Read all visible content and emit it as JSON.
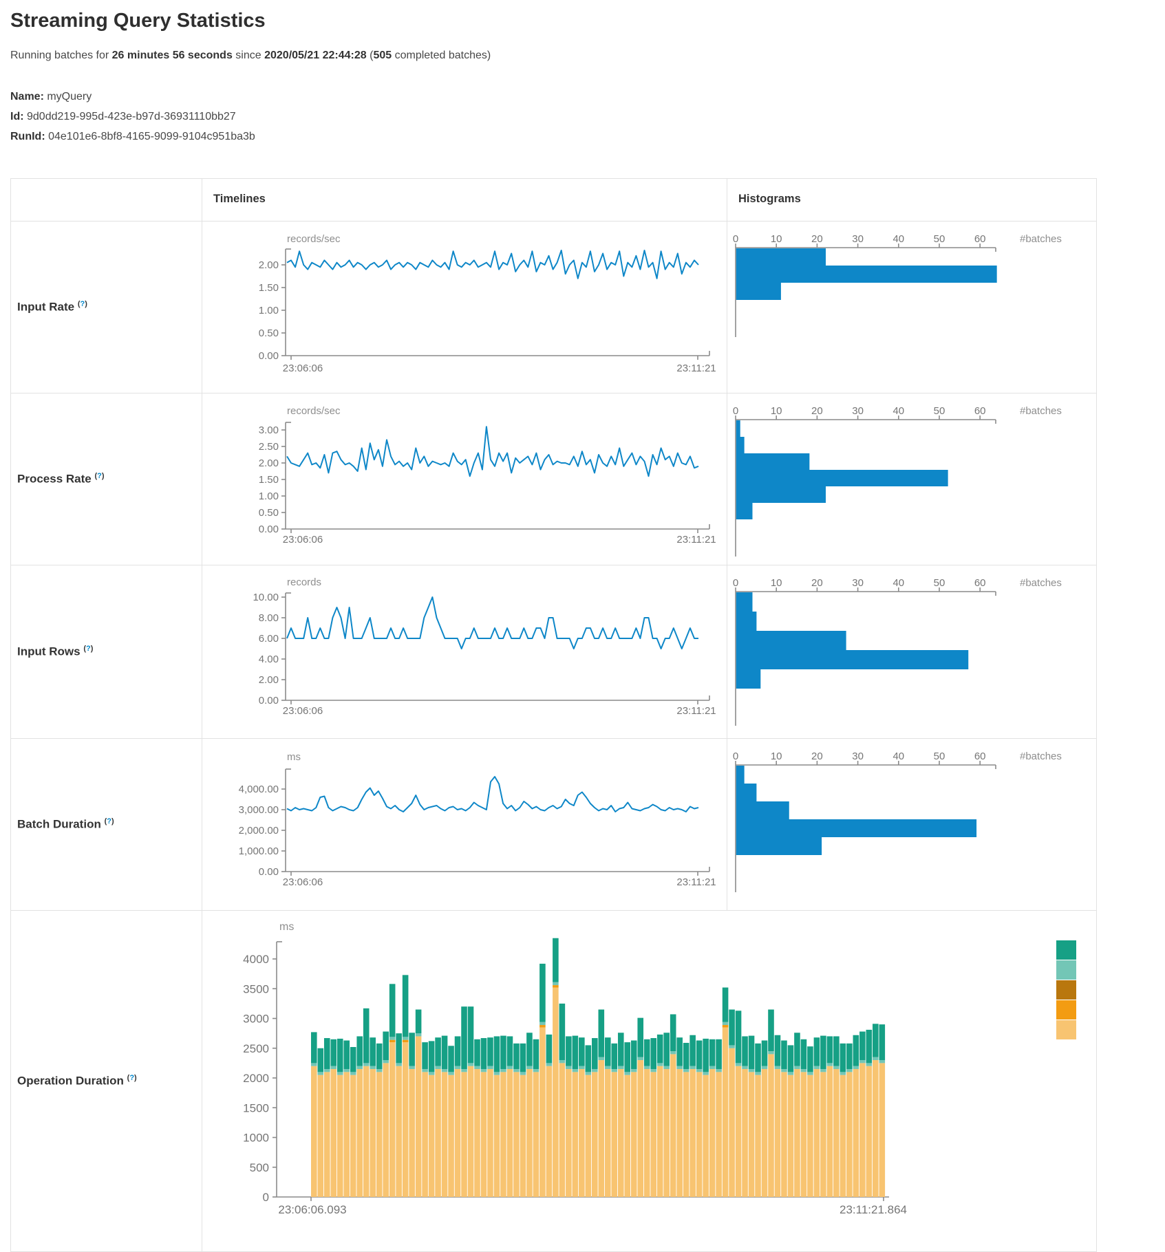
{
  "page": {
    "title": "Streaming Query Statistics",
    "subtitle_prefix": "Running batches for ",
    "duration": "26 minutes 56 seconds",
    "since_text": " since ",
    "start_time": "2020/05/21 22:44:28",
    "paren_open": " (",
    "completed_batches": "505",
    "batches_suffix": " completed batches)",
    "name_label": "Name:",
    "name_value": " myQuery",
    "id_label": "Id:",
    "id_value": " 9d0dd219-995d-423e-b97d-36931110bb27",
    "runid_label": "RunId:",
    "runid_value": " 04e101e6-8bf8-4165-9099-9104c951ba3b"
  },
  "ui": {
    "col_timelines": "Timelines",
    "col_histograms": "Histograms",
    "help_open": "(",
    "help_q": "?",
    "help_close": ")",
    "hist_xlabel": "#batches",
    "hist_xticks": [
      "0",
      "10",
      "20",
      "30",
      "40",
      "50",
      "60"
    ]
  },
  "colors": {
    "line_blue": "#0e87c8",
    "hist_blue": "#0e87c8",
    "axis_gray": "#8a8a8a",
    "tick_text": "#757575",
    "unit_text": "#8e8e8e",
    "border": "#e2e2e2",
    "help_blue": "#0088cc",
    "op_teal": "#16a085",
    "op_light_teal": "#73c6b6",
    "op_brown": "#b9770e",
    "op_orange": "#f39c12",
    "op_light_orange": "#f8c471"
  },
  "chart_data": [
    {
      "row": "Input Rate",
      "type": "line",
      "unit": "records/sec",
      "x_start": "23:06:06",
      "x_end": "23:11:21",
      "ytick_labels": [
        "2.00",
        "1.50",
        "1.00",
        "0.50",
        "0.00"
      ],
      "ytick_values": [
        2.0,
        1.5,
        1.0,
        0.5,
        0.0
      ],
      "ylim": [
        0,
        2.4
      ],
      "values": [
        2.05,
        2.1,
        1.95,
        2.3,
        2.0,
        1.9,
        2.05,
        2.0,
        1.95,
        2.1,
        2.0,
        1.9,
        2.05,
        1.95,
        2.0,
        2.1,
        1.95,
        2.05,
        2.0,
        1.9,
        2.0,
        2.05,
        1.95,
        2.0,
        2.1,
        1.9,
        2.0,
        2.05,
        1.95,
        2.05,
        2.0,
        1.9,
        2.05,
        2.0,
        1.95,
        2.1,
        2.0,
        1.95,
        2.05,
        1.9,
        2.3,
        2.0,
        1.95,
        2.05,
        2.0,
        2.1,
        1.95,
        2.0,
        2.05,
        1.95,
        2.3,
        1.9,
        2.05,
        2.0,
        2.25,
        1.85,
        2.0,
        2.1,
        1.95,
        2.3,
        1.85,
        2.05,
        2.0,
        2.2,
        1.9,
        2.05,
        2.35,
        1.8,
        2.0,
        2.1,
        1.7,
        2.05,
        1.95,
        2.3,
        1.85,
        2.0,
        2.25,
        1.9,
        2.05,
        2.0,
        2.3,
        1.75,
        2.05,
        1.95,
        2.2,
        1.9,
        2.35,
        1.95,
        2.05,
        1.7,
        2.3,
        1.9,
        2.05,
        1.95,
        2.25,
        1.8,
        2.05,
        1.95,
        2.1,
        2.0
      ],
      "histogram": {
        "type": "bar",
        "orientation": "horizontal",
        "xlabel": "#batches",
        "xticks": [
          0,
          10,
          20,
          30,
          40,
          50,
          60
        ],
        "values": [
          22,
          64,
          11
        ]
      }
    },
    {
      "row": "Process Rate",
      "type": "line",
      "unit": "records/sec",
      "x_start": "23:06:06",
      "x_end": "23:11:21",
      "ytick_labels": [
        "3.00",
        "2.50",
        "2.00",
        "1.50",
        "1.00",
        "0.50",
        "0.00"
      ],
      "ytick_values": [
        3.0,
        2.5,
        2.0,
        1.5,
        1.0,
        0.5,
        0.0
      ],
      "ylim": [
        0,
        3.2
      ],
      "values": [
        2.2,
        2.0,
        1.95,
        1.9,
        2.1,
        2.3,
        1.95,
        2.0,
        1.85,
        2.25,
        1.7,
        2.3,
        2.35,
        2.1,
        1.95,
        2.0,
        1.9,
        1.75,
        2.45,
        1.8,
        2.6,
        2.1,
        2.4,
        1.9,
        2.7,
        2.2,
        1.95,
        2.05,
        1.9,
        2.0,
        1.8,
        2.45,
        2.0,
        2.2,
        1.9,
        2.05,
        2.0,
        1.95,
        2.0,
        1.9,
        2.3,
        2.05,
        1.95,
        2.1,
        1.6,
        2.0,
        2.3,
        1.8,
        3.1,
        2.1,
        1.9,
        2.3,
        2.05,
        2.3,
        1.7,
        2.15,
        2.0,
        2.1,
        2.2,
        1.95,
        2.3,
        1.8,
        2.1,
        2.25,
        1.95,
        2.05,
        2.0,
        2.0,
        1.95,
        2.2,
        1.9,
        2.35,
        1.95,
        2.1,
        1.7,
        2.25,
        2.0,
        1.9,
        2.2,
        1.95,
        2.45,
        1.9,
        2.1,
        2.3,
        1.95,
        2.2,
        2.05,
        1.6,
        2.25,
        1.95,
        2.45,
        2.1,
        2.2,
        1.9,
        2.3,
        2.0,
        1.95,
        2.2,
        1.85,
        1.9
      ],
      "histogram": {
        "type": "bar",
        "orientation": "horizontal",
        "xlabel": "#batches",
        "xticks": [
          0,
          10,
          20,
          30,
          40,
          50,
          60
        ],
        "values": [
          1,
          2,
          18,
          52,
          22,
          4
        ]
      }
    },
    {
      "row": "Input Rows",
      "type": "line",
      "unit": "records",
      "x_start": "23:06:06",
      "x_end": "23:11:21",
      "ytick_labels": [
        "10.00",
        "8.00",
        "6.00",
        "4.00",
        "2.00",
        "0.00"
      ],
      "ytick_values": [
        10,
        8,
        6,
        4,
        2,
        0
      ],
      "ylim": [
        0,
        10.7
      ],
      "values": [
        6,
        7,
        6,
        6,
        6,
        8,
        6,
        6,
        7,
        6,
        6,
        8,
        9,
        8,
        6,
        9,
        6,
        6,
        6,
        7,
        8,
        6,
        6,
        6,
        6,
        7,
        6,
        6,
        7,
        6,
        6,
        6,
        6,
        8,
        9,
        10,
        8,
        7,
        6,
        6,
        6,
        6,
        5,
        6,
        6,
        7,
        6,
        6,
        6,
        6,
        7,
        6,
        6,
        7,
        6,
        6,
        6,
        7,
        6,
        6,
        7,
        7,
        6,
        8,
        8,
        6,
        6,
        6,
        6,
        5,
        6,
        6,
        7,
        7,
        6,
        6,
        7,
        6,
        6,
        7,
        6,
        6,
        6,
        6,
        7,
        6,
        8,
        8,
        6,
        6,
        5,
        6,
        6,
        7,
        6,
        5,
        6,
        7,
        6,
        6
      ],
      "histogram": {
        "type": "bar",
        "orientation": "horizontal",
        "xlabel": "#batches",
        "xticks": [
          0,
          10,
          20,
          30,
          40,
          50,
          60
        ],
        "values": [
          4,
          5,
          27,
          57,
          6
        ]
      }
    },
    {
      "row": "Batch Duration",
      "type": "line",
      "unit": "ms",
      "x_start": "23:06:06",
      "x_end": "23:11:21",
      "ytick_labels": [
        "4,000.00",
        "3,000.00",
        "2,000.00",
        "1,000.00",
        "0.00"
      ],
      "ytick_values": [
        4000,
        3000,
        2000,
        1000,
        0
      ],
      "ylim": [
        0,
        4900
      ],
      "values": [
        3050,
        2950,
        3100,
        3000,
        3050,
        3000,
        2950,
        3100,
        3600,
        3650,
        3100,
        2950,
        3050,
        3150,
        3100,
        3000,
        2950,
        3100,
        3500,
        3850,
        4050,
        3700,
        3900,
        3550,
        3150,
        3050,
        3200,
        3000,
        2900,
        3100,
        3300,
        3700,
        3250,
        3000,
        3100,
        3150,
        3200,
        3050,
        2950,
        3100,
        3150,
        3000,
        3050,
        2950,
        3100,
        3350,
        3200,
        3100,
        3000,
        4350,
        4600,
        4250,
        3300,
        3050,
        3200,
        2950,
        3100,
        3400,
        3250,
        3050,
        3150,
        3000,
        2950,
        3100,
        3200,
        3050,
        3150,
        3500,
        3300,
        3200,
        3700,
        3850,
        3600,
        3300,
        3100,
        2950,
        3050,
        3000,
        3200,
        2900,
        3050,
        3100,
        3350,
        3050,
        3000,
        2950,
        3050,
        3100,
        3250,
        3150,
        3000,
        2950,
        3100,
        3000,
        3050,
        3000,
        2900,
        3150,
        3050,
        3100
      ],
      "histogram": {
        "type": "bar",
        "orientation": "horizontal",
        "xlabel": "#batches",
        "xticks": [
          0,
          10,
          20,
          30,
          40,
          50,
          60
        ],
        "values": [
          2,
          5,
          13,
          59,
          21
        ]
      }
    },
    {
      "row": "Operation Duration",
      "type": "stacked-bar",
      "unit": "ms",
      "x_start": "23:06:06.093",
      "x_end": "23:11:21.864",
      "ytick_labels": [
        "4000",
        "3500",
        "3000",
        "2500",
        "2000",
        "1500",
        "1000",
        "500",
        "0"
      ],
      "ytick_values": [
        4000,
        3500,
        3000,
        2500,
        2000,
        1500,
        1000,
        500,
        0
      ],
      "ylim": [
        0,
        4400
      ],
      "legend_colors": [
        "#16a085",
        "#73c6b6",
        "#b9770e",
        "#f39c12",
        "#f8c471"
      ],
      "light_teal_sliver_ms": 50,
      "bars": [
        [
          2200,
          0,
          520
        ],
        [
          2050,
          0,
          400
        ],
        [
          2100,
          0,
          520
        ],
        [
          2150,
          0,
          450
        ],
        [
          2050,
          0,
          560
        ],
        [
          2100,
          0,
          480
        ],
        [
          2050,
          0,
          420
        ],
        [
          2150,
          0,
          500
        ],
        [
          2200,
          0,
          920
        ],
        [
          2150,
          0,
          480
        ],
        [
          2100,
          0,
          430
        ],
        [
          2250,
          0,
          480
        ],
        [
          2600,
          40,
          890
        ],
        [
          2200,
          0,
          500
        ],
        [
          2600,
          40,
          1040
        ],
        [
          2150,
          0,
          560
        ],
        [
          2700,
          0,
          400
        ],
        [
          2100,
          0,
          450
        ],
        [
          2050,
          0,
          520
        ],
        [
          2150,
          0,
          480
        ],
        [
          2100,
          0,
          560
        ],
        [
          2050,
          0,
          440
        ],
        [
          2150,
          0,
          500
        ],
        [
          2100,
          0,
          1050
        ],
        [
          2200,
          0,
          950
        ],
        [
          2150,
          0,
          450
        ],
        [
          2100,
          0,
          520
        ],
        [
          2150,
          0,
          480
        ],
        [
          2050,
          0,
          600
        ],
        [
          2100,
          0,
          560
        ],
        [
          2150,
          0,
          500
        ],
        [
          2100,
          0,
          430
        ],
        [
          2050,
          0,
          480
        ],
        [
          2150,
          0,
          560
        ],
        [
          2100,
          0,
          500
        ],
        [
          2850,
          40,
          980
        ],
        [
          2200,
          0,
          480
        ],
        [
          3520,
          40,
          740
        ],
        [
          2250,
          0,
          950
        ],
        [
          2150,
          0,
          500
        ],
        [
          2100,
          0,
          560
        ],
        [
          2150,
          0,
          480
        ],
        [
          2050,
          0,
          450
        ],
        [
          2100,
          0,
          520
        ],
        [
          2300,
          0,
          800
        ],
        [
          2150,
          0,
          480
        ],
        [
          2100,
          0,
          430
        ],
        [
          2150,
          0,
          560
        ],
        [
          2050,
          0,
          500
        ],
        [
          2100,
          0,
          480
        ],
        [
          2300,
          0,
          660
        ],
        [
          2150,
          0,
          450
        ],
        [
          2100,
          0,
          520
        ],
        [
          2200,
          0,
          480
        ],
        [
          2150,
          0,
          560
        ],
        [
          2400,
          0,
          620
        ],
        [
          2150,
          0,
          480
        ],
        [
          2100,
          0,
          440
        ],
        [
          2150,
          0,
          520
        ],
        [
          2100,
          0,
          480
        ],
        [
          2050,
          0,
          560
        ],
        [
          2150,
          0,
          450
        ],
        [
          2100,
          0,
          500
        ],
        [
          2850,
          40,
          580
        ],
        [
          2500,
          0,
          600
        ],
        [
          2200,
          0,
          880
        ],
        [
          2150,
          0,
          500
        ],
        [
          2100,
          0,
          560
        ],
        [
          2050,
          0,
          480
        ],
        [
          2150,
          0,
          430
        ],
        [
          2400,
          0,
          700
        ],
        [
          2150,
          0,
          520
        ],
        [
          2100,
          0,
          480
        ],
        [
          2050,
          0,
          450
        ],
        [
          2150,
          0,
          560
        ],
        [
          2100,
          0,
          500
        ],
        [
          2050,
          0,
          430
        ],
        [
          2150,
          0,
          480
        ],
        [
          2100,
          0,
          560
        ],
        [
          2200,
          0,
          450
        ],
        [
          2150,
          0,
          500
        ],
        [
          2050,
          0,
          480
        ],
        [
          2100,
          0,
          430
        ],
        [
          2150,
          0,
          520
        ],
        [
          2250,
          0,
          480
        ],
        [
          2200,
          0,
          560
        ],
        [
          2300,
          0,
          560
        ],
        [
          2250,
          0,
          600
        ]
      ]
    }
  ]
}
